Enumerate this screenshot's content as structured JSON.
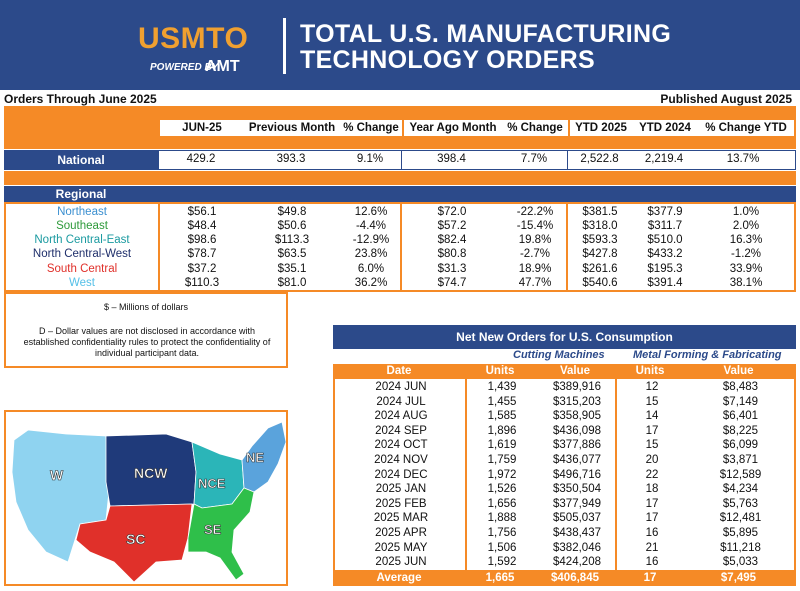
{
  "header": {
    "logo_text": "USMTO",
    "powered_by": "POWERED BY",
    "amt": "AMT",
    "title_line1": "TOTAL U.S. MANUFACTURING",
    "title_line2": "TECHNOLOGY ORDERS"
  },
  "orders_through": "Orders Through June 2025",
  "published": "Published August 2025",
  "columns": [
    "JUN-25",
    "Previous Month",
    "% Change",
    "Year Ago Month",
    "% Change",
    "YTD 2025",
    "YTD 2024",
    "% Change YTD"
  ],
  "national": {
    "label": "National",
    "values": [
      "429.2",
      "393.3",
      "9.1%",
      "398.4",
      "7.7%",
      "2,522.8",
      "2,219.4",
      "13.7%"
    ]
  },
  "regional": {
    "label": "Regional",
    "rows": [
      {
        "name": "Northeast",
        "color": "#3b8fd0",
        "values": [
          "$56.1",
          "$49.8",
          "12.6%",
          "$72.0",
          "-22.2%",
          "$381.5",
          "$377.9",
          "1.0%"
        ]
      },
      {
        "name": "Southeast",
        "color": "#2e9a3a",
        "values": [
          "$48.4",
          "$50.6",
          "-4.4%",
          "$57.2",
          "-15.4%",
          "$318.0",
          "$311.7",
          "2.0%"
        ]
      },
      {
        "name": "North Central-East",
        "color": "#1a9aa0",
        "values": [
          "$98.6",
          "$113.3",
          "-12.9%",
          "$82.4",
          "19.8%",
          "$593.3",
          "$510.0",
          "16.3%"
        ]
      },
      {
        "name": "North Central-West",
        "color": "#1f2f6b",
        "values": [
          "$78.7",
          "$63.5",
          "23.8%",
          "$80.8",
          "-2.7%",
          "$427.8",
          "$433.2",
          "-1.2%"
        ]
      },
      {
        "name": "South Central",
        "color": "#e0302a",
        "values": [
          "$37.2",
          "$35.1",
          "6.0%",
          "$31.3",
          "18.9%",
          "$261.6",
          "$195.3",
          "33.9%"
        ]
      },
      {
        "name": "West",
        "color": "#55c0e8",
        "values": [
          "$110.3",
          "$81.0",
          "36.2%",
          "$74.7",
          "47.7%",
          "$540.6",
          "$391.4",
          "38.1%"
        ]
      }
    ]
  },
  "notes": {
    "unit": "$ – Millions of dollars",
    "disclosure": "D – Dollar values are not disclosed in accordance with established confidentiality rules to protect the confidentiality of individual participant data."
  },
  "net_new_orders": {
    "title": "Net New Orders for U.S. Consumption",
    "group1": "Cutting Machines",
    "group2": "Metal Forming & Fabricating",
    "headers": [
      "Date",
      "Units",
      "Value",
      "Units",
      "Value"
    ],
    "rows": [
      [
        "2024 JUN",
        "1,439",
        "$389,916",
        "12",
        "$8,483"
      ],
      [
        "2024 JUL",
        "1,455",
        "$315,203",
        "15",
        "$7,149"
      ],
      [
        "2024 AUG",
        "1,585",
        "$358,905",
        "14",
        "$6,401"
      ],
      [
        "2024 SEP",
        "1,896",
        "$436,098",
        "17",
        "$8,225"
      ],
      [
        "2024 OCT",
        "1,619",
        "$377,886",
        "15",
        "$6,099"
      ],
      [
        "2024 NOV",
        "1,759",
        "$436,077",
        "20",
        "$3,871"
      ],
      [
        "2024 DEC",
        "1,972",
        "$496,716",
        "22",
        "$12,589"
      ],
      [
        "2025 JAN",
        "1,526",
        "$350,504",
        "18",
        "$4,234"
      ],
      [
        "2025 FEB",
        "1,656",
        "$377,949",
        "17",
        "$5,763"
      ],
      [
        "2025 MAR",
        "1,888",
        "$505,037",
        "17",
        "$12,481"
      ],
      [
        "2025 APR",
        "1,756",
        "$438,437",
        "16",
        "$5,895"
      ],
      [
        "2025 MAY",
        "1,506",
        "$382,046",
        "21",
        "$11,218"
      ],
      [
        "2025 JUN",
        "1,592",
        "$424,208",
        "16",
        "$5,033"
      ]
    ],
    "average": [
      "Average",
      "1,665",
      "$406,845",
      "17",
      "$7,495"
    ]
  },
  "map": {
    "labels": [
      "W",
      "NCW",
      "NCE",
      "NE",
      "SC",
      "SE"
    ],
    "colors": {
      "W": "#8fd3f0",
      "NCW": "#1f3a7a",
      "NCE": "#2bb5b8",
      "NE": "#5aa3dc",
      "SC": "#e0302a",
      "SE": "#2fbf4a"
    }
  }
}
